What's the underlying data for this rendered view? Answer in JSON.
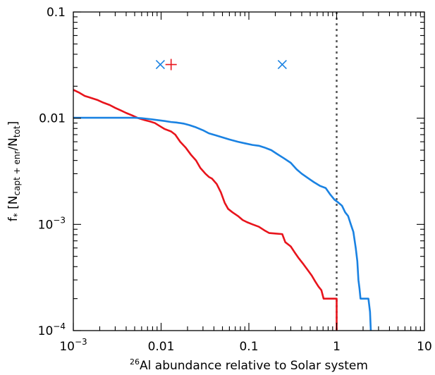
{
  "chart_data": {
    "type": "line",
    "x_scale": "log",
    "y_scale": "log",
    "xlim": [
      0.001,
      10
    ],
    "ylim": [
      0.0001,
      0.1
    ],
    "grid": false,
    "legend": "none",
    "xlabel": {
      "sup": "26",
      "text": "Al abundance relative to Solar system"
    },
    "ylabel": {
      "main": "f",
      "star": "*",
      "open": "[N",
      "sub1": "capt + enr",
      "slash": "/N",
      "sub2": "tot",
      "close": "]"
    },
    "x_ticks": [
      {
        "value": 0.001,
        "base": "10",
        "exp": "−3"
      },
      {
        "value": 0.01,
        "label": "0.01"
      },
      {
        "value": 0.1,
        "label": "0.1"
      },
      {
        "value": 1,
        "label": "1"
      },
      {
        "value": 10,
        "label": "10"
      }
    ],
    "y_ticks": [
      {
        "value": 0.0001,
        "base": "10",
        "exp": "−4"
      },
      {
        "value": 0.001,
        "base": "10",
        "exp": "−3"
      },
      {
        "value": 0.01,
        "label": "0.01"
      },
      {
        "value": 0.1,
        "label": "0.1"
      }
    ],
    "reference_line": {
      "x": 1,
      "style": "dotted",
      "color": "#555555"
    },
    "series": [
      {
        "color": "#e8141c",
        "points": [
          [
            0.001,
            0.0185
          ],
          [
            0.00115,
            0.0175
          ],
          [
            0.00135,
            0.0162
          ],
          [
            0.0016,
            0.0155
          ],
          [
            0.0019,
            0.0148
          ],
          [
            0.0022,
            0.014
          ],
          [
            0.0026,
            0.0133
          ],
          [
            0.003,
            0.0125
          ],
          [
            0.0035,
            0.0118
          ],
          [
            0.004,
            0.0112
          ],
          [
            0.0047,
            0.0106
          ],
          [
            0.0055,
            0.01
          ],
          [
            0.0065,
            0.0096
          ],
          [
            0.0075,
            0.0093
          ],
          [
            0.0085,
            0.009
          ],
          [
            0.0095,
            0.0085
          ],
          [
            0.011,
            0.0079
          ],
          [
            0.013,
            0.0075
          ],
          [
            0.0145,
            0.007
          ],
          [
            0.0165,
            0.006
          ],
          [
            0.019,
            0.0053
          ],
          [
            0.022,
            0.0045
          ],
          [
            0.025,
            0.004
          ],
          [
            0.028,
            0.0034
          ],
          [
            0.032,
            0.003
          ],
          [
            0.035,
            0.0028
          ],
          [
            0.038,
            0.0027
          ],
          [
            0.043,
            0.0024
          ],
          [
            0.048,
            0.002
          ],
          [
            0.053,
            0.0016
          ],
          [
            0.058,
            0.0014
          ],
          [
            0.065,
            0.0013
          ],
          [
            0.075,
            0.0012
          ],
          [
            0.085,
            0.0011
          ],
          [
            0.095,
            0.00105
          ],
          [
            0.11,
            0.001
          ],
          [
            0.13,
            0.00095
          ],
          [
            0.15,
            0.00088
          ],
          [
            0.17,
            0.00083
          ],
          [
            0.2,
            0.00082
          ],
          [
            0.24,
            0.00081
          ],
          [
            0.26,
            0.00068
          ],
          [
            0.3,
            0.00062
          ],
          [
            0.33,
            0.00055
          ],
          [
            0.37,
            0.00048
          ],
          [
            0.42,
            0.00042
          ],
          [
            0.47,
            0.00037
          ],
          [
            0.52,
            0.00033
          ],
          [
            0.57,
            0.00029
          ],
          [
            0.62,
            0.00026
          ],
          [
            0.67,
            0.00024
          ],
          [
            0.71,
            0.0002
          ],
          [
            0.75,
            0.0002
          ],
          [
            1.0,
            0.0002
          ],
          [
            1.0,
            0.0001
          ]
        ]
      },
      {
        "color": "#1a82e2",
        "points": [
          [
            0.001,
            0.0101
          ],
          [
            0.003,
            0.0101
          ],
          [
            0.005,
            0.0101
          ],
          [
            0.006,
            0.01
          ],
          [
            0.0075,
            0.0098
          ],
          [
            0.009,
            0.0096
          ],
          [
            0.011,
            0.0094
          ],
          [
            0.013,
            0.0092
          ],
          [
            0.015,
            0.0091
          ],
          [
            0.018,
            0.0089
          ],
          [
            0.021,
            0.0086
          ],
          [
            0.025,
            0.0082
          ],
          [
            0.03,
            0.0077
          ],
          [
            0.035,
            0.0072
          ],
          [
            0.042,
            0.0069
          ],
          [
            0.05,
            0.0066
          ],
          [
            0.06,
            0.0063
          ],
          [
            0.075,
            0.006
          ],
          [
            0.09,
            0.0058
          ],
          [
            0.11,
            0.0056
          ],
          [
            0.13,
            0.0055
          ],
          [
            0.15,
            0.0053
          ],
          [
            0.18,
            0.005
          ],
          [
            0.21,
            0.0046
          ],
          [
            0.25,
            0.0042
          ],
          [
            0.3,
            0.0038
          ],
          [
            0.35,
            0.0033
          ],
          [
            0.4,
            0.003
          ],
          [
            0.48,
            0.0027
          ],
          [
            0.55,
            0.0025
          ],
          [
            0.65,
            0.0023
          ],
          [
            0.75,
            0.0022
          ],
          [
            0.85,
            0.0019
          ],
          [
            0.95,
            0.0017
          ],
          [
            1.05,
            0.0016
          ],
          [
            1.15,
            0.0015
          ],
          [
            1.25,
            0.0013
          ],
          [
            1.35,
            0.0012
          ],
          [
            1.45,
            0.001
          ],
          [
            1.55,
            0.00085
          ],
          [
            1.65,
            0.0006
          ],
          [
            1.72,
            0.00045
          ],
          [
            1.77,
            0.0003
          ],
          [
            1.82,
            0.00025
          ],
          [
            1.87,
            0.0002
          ],
          [
            2.0,
            0.0002
          ],
          [
            2.3,
            0.0002
          ],
          [
            2.4,
            0.00015
          ],
          [
            2.45,
            0.0001
          ]
        ]
      }
    ],
    "markers": [
      {
        "shape": "x",
        "color": "#1a82e2",
        "x": 0.0098,
        "y": 0.032
      },
      {
        "shape": "plus",
        "color": "#e8141c",
        "x": 0.013,
        "y": 0.032
      },
      {
        "shape": "x",
        "color": "#1a82e2",
        "x": 0.24,
        "y": 0.032
      }
    ]
  }
}
